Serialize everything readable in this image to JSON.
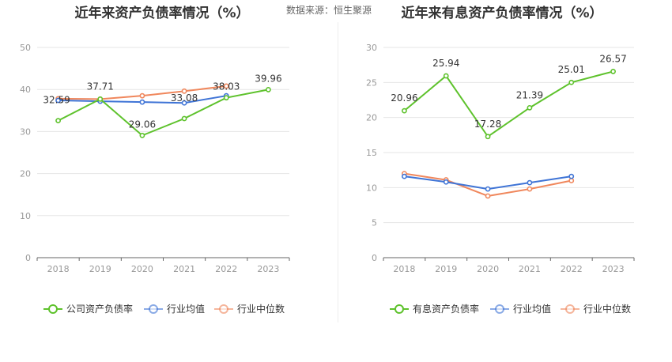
{
  "source_label": "数据来源：恒生聚源",
  "charts": [
    {
      "type": "line",
      "title": "近年来资产负债率情况（%）",
      "categories": [
        "2018",
        "2019",
        "2020",
        "2021",
        "2022",
        "2023"
      ],
      "ylim": [
        0,
        50
      ],
      "yticks": [
        0,
        10,
        20,
        30,
        40,
        50
      ],
      "series": [
        {
          "name": "公司资产负债率",
          "color": "#5ec22c",
          "values": [
            32.59,
            37.71,
            29.06,
            33.08,
            38.03,
            39.96
          ],
          "labels": [
            "32.59",
            "37.71",
            "29.06",
            "33.08",
            "38.03",
            "39.96"
          ]
        },
        {
          "name": "行业均值",
          "color": "#3f74d6",
          "values": [
            37.4,
            37.2,
            37.0,
            36.8,
            38.5,
            null
          ]
        },
        {
          "name": "行业中位数",
          "color": "#f0875c",
          "values": [
            37.8,
            37.7,
            38.5,
            39.6,
            40.8,
            null
          ]
        }
      ]
    },
    {
      "type": "line",
      "title": "近年来有息资产负债率情况（%）",
      "categories": [
        "2018",
        "2019",
        "2020",
        "2021",
        "2022",
        "2023"
      ],
      "ylim": [
        0,
        30
      ],
      "yticks": [
        0,
        5,
        10,
        15,
        20,
        25,
        30
      ],
      "series": [
        {
          "name": "有息资产负债率",
          "color": "#5ec22c",
          "values": [
            20.96,
            25.94,
            17.28,
            21.39,
            25.01,
            26.57
          ],
          "labels": [
            "20.96",
            "25.94",
            "17.28",
            "21.39",
            "25.01",
            "26.57"
          ]
        },
        {
          "name": "行业均值",
          "color": "#3f74d6",
          "values": [
            11.6,
            10.8,
            9.8,
            10.7,
            11.6,
            null
          ]
        },
        {
          "name": "行业中位数",
          "color": "#f0875c",
          "values": [
            12.0,
            11.1,
            8.8,
            9.8,
            11.0,
            null
          ]
        }
      ]
    }
  ],
  "chart_data": [
    {
      "type": "line",
      "title": "近年来资产负债率情况（%）",
      "categories": [
        "2018",
        "2019",
        "2020",
        "2021",
        "2022",
        "2023"
      ],
      "ylim": [
        0,
        50
      ],
      "series": [
        {
          "name": "公司资产负债率",
          "values": [
            32.59,
            37.71,
            29.06,
            33.08,
            38.03,
            39.96
          ]
        },
        {
          "name": "行业均值",
          "values": [
            37.4,
            37.2,
            37.0,
            36.8,
            38.5,
            null
          ]
        },
        {
          "name": "行业中位数",
          "values": [
            37.8,
            37.7,
            38.5,
            39.6,
            40.8,
            null
          ]
        }
      ],
      "legend": "bottom"
    },
    {
      "type": "line",
      "title": "近年来有息资产负债率情况（%）",
      "categories": [
        "2018",
        "2019",
        "2020",
        "2021",
        "2022",
        "2023"
      ],
      "ylim": [
        0,
        30
      ],
      "series": [
        {
          "name": "有息资产负债率",
          "values": [
            20.96,
            25.94,
            17.28,
            21.39,
            25.01,
            26.57
          ]
        },
        {
          "name": "行业均值",
          "values": [
            11.6,
            10.8,
            9.8,
            10.7,
            11.6,
            null
          ]
        },
        {
          "name": "行业中位数",
          "values": [
            12.0,
            11.1,
            8.8,
            9.8,
            11.0,
            null
          ]
        }
      ],
      "legend": "bottom"
    }
  ]
}
